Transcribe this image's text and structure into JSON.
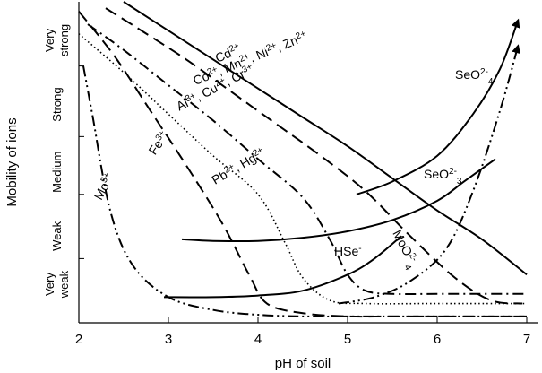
{
  "chart_data": {
    "type": "line",
    "xlabel": "pH of soil",
    "ylabel": "Mobility of  ions",
    "xlim": [
      2,
      7
    ],
    "ylim": [
      0,
      100
    ],
    "x_ticks": [
      2,
      3,
      4,
      5,
      6,
      7
    ],
    "y_categories": [
      {
        "label": "Very weak",
        "lines": [
          "Very",
          "weak"
        ],
        "y": 12
      },
      {
        "label": "Weak",
        "lines": [
          "Weak"
        ],
        "y": 27
      },
      {
        "label": "Medium",
        "lines": [
          "Medium"
        ],
        "y": 47
      },
      {
        "label": "Strong",
        "lines": [
          "Strong"
        ],
        "y": 68
      },
      {
        "label": "Very strong",
        "lines": [
          "Very",
          "strong"
        ],
        "y": 88
      }
    ],
    "grid": false,
    "legend": "none",
    "series": [
      {
        "name": "Cd²⁺",
        "label": {
          "base": "Cd",
          "sup": "2+",
          "x": 3.55,
          "y": 81,
          "rot": 24
        },
        "line_style": "solid",
        "x": [
          2.5,
          3.0,
          3.5,
          4.0,
          4.5,
          5.0,
          5.5,
          6.0,
          6.5,
          7.0
        ],
        "y": [
          100,
          91,
          82,
          73,
          64,
          55,
          45,
          35,
          26,
          15
        ]
      },
      {
        "name": "Co²⁺, Mn²⁺, Ni²⁺, Zn²⁺",
        "label": {
          "parts": [
            [
              "Co",
              "2+"
            ],
            [
              ", Mn",
              "2+"
            ],
            [
              ", Ni",
              "2+"
            ],
            [
              ", Zn",
              "2+"
            ]
          ],
          "x": 3.3,
          "y": 74,
          "rot": 22
        },
        "line_style": "dashed",
        "x": [
          2.3,
          2.7,
          3.2,
          3.7,
          4.2,
          4.7,
          5.2,
          5.7,
          6.2,
          6.6,
          6.95
        ],
        "y": [
          98,
          91,
          82,
          72,
          62,
          52,
          41,
          27,
          14,
          7,
          6
        ]
      },
      {
        "name": "Al³⁺, Cu²⁺, Cr³⁺",
        "label": {
          "parts": [
            [
              "Al",
              "3+"
            ],
            [
              ", Cu",
              "2+"
            ],
            [
              ", Cr",
              "3+"
            ]
          ],
          "x": 3.12,
          "y": 66,
          "rot": 27
        },
        "line_style": "dash-dot",
        "x": [
          2.1,
          2.5,
          3.0,
          3.5,
          4.0,
          4.5,
          4.8,
          5.0,
          5.2,
          5.5,
          6.0,
          6.5,
          7.0
        ],
        "y": [
          93,
          85,
          74,
          63,
          51,
          39,
          26,
          15,
          10,
          9,
          9,
          9,
          9
        ]
      },
      {
        "name": "Pb²⁺, Hg²⁺",
        "label": {
          "parts": [
            [
              "Pb",
              "2+"
            ],
            [
              ", Hg",
              "2+"
            ]
          ],
          "x": 3.52,
          "y": 43,
          "rot": 30
        },
        "line_style": "dotted",
        "x": [
          2.0,
          2.5,
          3.0,
          3.5,
          4.0,
          4.3,
          4.5,
          4.8,
          5.2,
          6.0,
          7.0
        ],
        "y": [
          90,
          78,
          65,
          52,
          40,
          25,
          14,
          7,
          6,
          6,
          6
        ]
      },
      {
        "name": "Fe³⁺",
        "label": {
          "base": "Fe",
          "sup": "3+",
          "x": 2.85,
          "y": 52,
          "rot": 55
        },
        "line_style": "dashed",
        "x": [
          2.0,
          2.4,
          2.8,
          3.2,
          3.6,
          3.9,
          4.1,
          4.5,
          5.0,
          5.5,
          6.0,
          6.5,
          7.0
        ],
        "y": [
          97,
          83,
          66,
          49,
          31,
          15,
          6,
          3,
          2,
          2,
          2,
          2,
          2
        ]
      },
      {
        "name": "Mo⁵⁺",
        "label": {
          "base": "Mo",
          "sup": "5+",
          "x": 2.25,
          "y": 38,
          "rot": 62
        },
        "line_style": "dash-dot-dot",
        "x": [
          2.05,
          2.15,
          2.35,
          2.6,
          3.0,
          3.5,
          4.0,
          4.5,
          5.0,
          5.5,
          6.0,
          6.5,
          7.0
        ],
        "y": [
          80,
          65,
          35,
          18,
          8,
          4,
          2.5,
          2,
          2,
          2,
          2,
          2,
          2
        ]
      },
      {
        "name": "SeO²⁻₄",
        "label": {
          "base": "SeO",
          "sup": "2-",
          "sub": "4",
          "x": 6.2,
          "y": 76,
          "rot": 0
        },
        "line_style": "solid",
        "arrow": true,
        "x": [
          5.1,
          5.5,
          6.0,
          6.4,
          6.7,
          6.9
        ],
        "y": [
          40,
          44,
          52,
          65,
          79,
          94
        ]
      },
      {
        "name": "SeO²⁻₃",
        "label": {
          "base": "SeO",
          "sup": "2-",
          "sub": "3",
          "x": 5.85,
          "y": 45,
          "rot": 0
        },
        "line_style": "solid",
        "x": [
          3.15,
          3.5,
          4.0,
          4.5,
          5.0,
          5.5,
          6.0,
          6.3,
          6.65
        ],
        "y": [
          26,
          25.5,
          25.5,
          26.5,
          28.5,
          32,
          38,
          44,
          51
        ]
      },
      {
        "name": "HSe⁻",
        "label": {
          "base": "HSe",
          "sup": "-",
          "x": 4.85,
          "y": 21,
          "rot": 0
        },
        "line_style": "solid",
        "x": [
          2.95,
          3.5,
          4.0,
          4.5,
          5.0,
          5.3,
          5.6
        ],
        "y": [
          8,
          8,
          8.5,
          10,
          15,
          20,
          27
        ]
      },
      {
        "name": "MoO²⁻₄",
        "label": {
          "base": "MoO",
          "sup": "2-",
          "sub": "4",
          "x": 5.5,
          "y": 28,
          "rot": -62
        },
        "line_style": "dash-dot-dot",
        "arrow": true,
        "x": [
          4.9,
          5.3,
          5.7,
          6.1,
          6.4,
          6.7,
          6.9
        ],
        "y": [
          6,
          8,
          13,
          23,
          41,
          66,
          86
        ]
      }
    ]
  }
}
